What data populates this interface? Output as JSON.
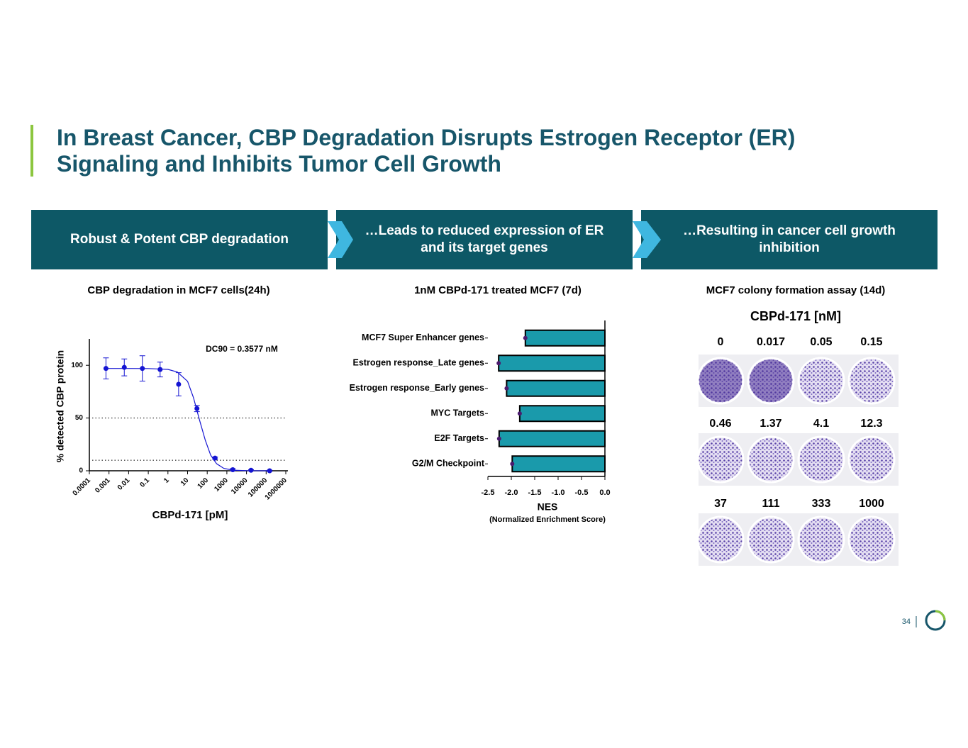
{
  "header": {
    "title": "In Breast Cancer, CBP Degradation Disrupts Estrogen Receptor (ER) Signaling and Inhibits Tumor Cell Growth"
  },
  "banners": [
    "Robust & Potent CBP degradation",
    "…Leads to reduced expression of ER and its target genes",
    "…Resulting in cancer cell growth inhibition"
  ],
  "chart_data": [
    {
      "type": "scatter",
      "title": "CBP degradation in MCF7 cells(24h)",
      "xlabel": "CBPd-171 [pM]",
      "ylabel": "% detected CBP protein",
      "annotation": "DC90 = 0.3577 nM",
      "log_x": true,
      "color": "#1414d2",
      "x": [
        0.0007,
        0.006,
        0.05,
        0.4,
        3.5,
        30,
        250,
        2000,
        17000,
        150000
      ],
      "values": [
        97,
        98,
        97,
        96,
        82,
        59,
        12,
        1,
        0.5,
        0
      ],
      "errors": [
        10,
        8,
        12,
        7,
        11,
        3,
        1,
        1,
        0.5,
        0.5
      ],
      "fit": {
        "x": [
          0.0007,
          0.01,
          0.1,
          1,
          3,
          10,
          20,
          40,
          80,
          150,
          300,
          700,
          2000,
          10000,
          150000
        ],
        "y": [
          97,
          97,
          96.9,
          96.1,
          93.6,
          84.8,
          69.3,
          48.5,
          28.9,
          14.8,
          6.7,
          2.3,
          0.6,
          0.07,
          0
        ]
      },
      "hlines": [
        50,
        10
      ],
      "xlim": [
        0.0001,
        1000000
      ],
      "xticks": [
        0.0001,
        0.001,
        0.01,
        0.1,
        1,
        10,
        100,
        1000,
        10000,
        100000,
        1000000
      ],
      "ylim": [
        0,
        125
      ],
      "yticks": [
        0,
        50,
        100
      ]
    },
    {
      "type": "barh",
      "title": "1nM CBPd-171 treated MCF7 (7d)",
      "xlabel": "NES",
      "xlabel_note": "(Normalized Enrichment Score)",
      "color": "#1a9aab",
      "dot_color": "#4b1a6e",
      "categories": [
        "MCF7 Super Enhancer genes",
        "Estrogen response_Late genes",
        "Estrogen response_Early genes",
        "MYC Targets",
        "E2F Targets",
        "G2/M Checkpoint"
      ],
      "values": [
        -1.7,
        -2.27,
        -2.1,
        -1.82,
        -2.26,
        -1.98
      ],
      "xlim": [
        -2.5,
        0
      ],
      "xticks": [
        {
          "value": -2.5,
          "label": "-2.5"
        },
        {
          "value": -2,
          "label": "-2.0"
        },
        {
          "value": -1.5,
          "label": "-1.5"
        },
        {
          "value": -1,
          "label": "-1.0"
        },
        {
          "value": -0.5,
          "label": "-0.5"
        },
        {
          "value": 0,
          "label": "0.0"
        }
      ]
    }
  ],
  "colony": {
    "title": "MCF7 colony formation assay (14d)",
    "heading": "CBPd-171 [nM]",
    "labels": [
      "0",
      "0.017",
      "0.05",
      "0.15",
      "0.46",
      "1.37",
      "4.1",
      "12.3",
      "37",
      "111",
      "333",
      "1000"
    ]
  },
  "page_number": "34"
}
